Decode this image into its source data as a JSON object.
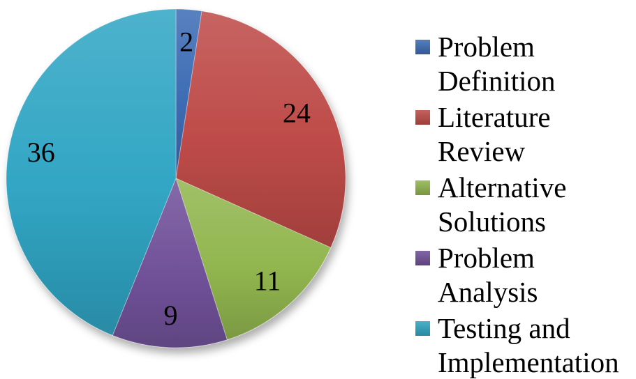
{
  "figure": {
    "background": "#ffffff",
    "label_color": "#000000"
  },
  "chart_data": {
    "type": "pie",
    "title": "",
    "categories": [
      "Problem Definition",
      "Literature Review",
      "Alternative Solutions",
      "Problem Analysis",
      "Testing and Implementation"
    ],
    "values": [
      2,
      24,
      11,
      9,
      36
    ],
    "data_labels": [
      "2",
      "24",
      "11",
      "9",
      "36"
    ],
    "colors": [
      "#3D6CB4",
      "#BE4B48",
      "#92B64F",
      "#71529A",
      "#31A6C4"
    ],
    "total": 82,
    "start_angle_deg": 0,
    "direction": "clockwise",
    "legend_position": "right",
    "grid": false
  }
}
